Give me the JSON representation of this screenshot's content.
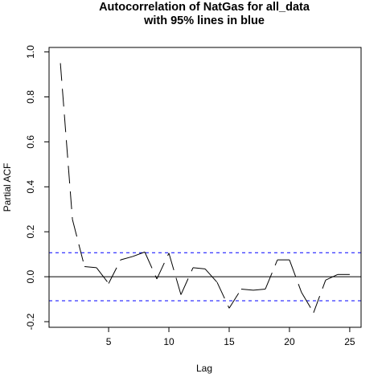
{
  "chart_data": {
    "type": "line",
    "title_line1": "Autocorrelation of NatGas for all_data",
    "title_line2": "with 95% lines in blue",
    "xlabel": "Lag",
    "ylabel": "Partial ACF",
    "xlim": [
      0.06,
      25.94
    ],
    "ylim": [
      -0.225,
      1.02
    ],
    "x_ticks": [
      5,
      10,
      15,
      20,
      25
    ],
    "y_ticks": [
      -0.2,
      0.0,
      0.2,
      0.4,
      0.6,
      0.8,
      1.0
    ],
    "y_tick_labels": [
      "-0.2",
      "0.0",
      "0.2",
      "0.4",
      "0.6",
      "0.8",
      "1.0"
    ],
    "confidence_band": 0.107,
    "band_color": "#0000ff",
    "line_color": "#000000",
    "line_style": "dashed",
    "series": [
      {
        "x": [
          1,
          2,
          3,
          4,
          5,
          6,
          7,
          8,
          9,
          10,
          11,
          12,
          13,
          14,
          15,
          16,
          17,
          18,
          19,
          20,
          21,
          22,
          23,
          24,
          25
        ],
        "values": [
          0.95,
          0.255,
          0.045,
          0.04,
          -0.03,
          0.075,
          0.09,
          0.11,
          -0.01,
          0.105,
          -0.08,
          0.04,
          0.035,
          -0.025,
          -0.14,
          -0.055,
          -0.06,
          -0.055,
          0.075,
          0.075,
          -0.07,
          -0.16,
          -0.015,
          0.01,
          0.01
        ]
      }
    ]
  }
}
